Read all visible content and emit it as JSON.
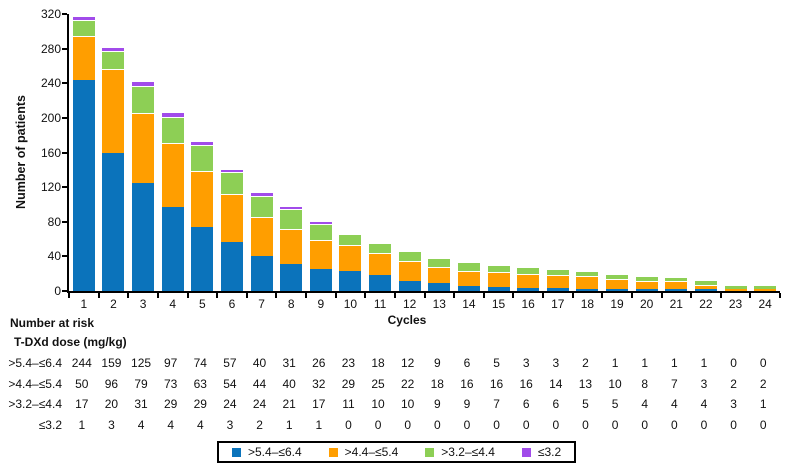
{
  "chart_data": {
    "type": "bar",
    "stacked": true,
    "title": "",
    "xlabel": "Cycles",
    "ylabel": "Number of patients",
    "ylim": [
      0,
      320
    ],
    "yticks": [
      0,
      40,
      80,
      120,
      160,
      200,
      240,
      280,
      320
    ],
    "grid": false,
    "legend_position": "bottom",
    "categories": [
      "1",
      "2",
      "3",
      "4",
      "5",
      "6",
      "7",
      "8",
      "9",
      "10",
      "11",
      "12",
      "13",
      "14",
      "15",
      "16",
      "17",
      "18",
      "19",
      "20",
      "21",
      "22",
      "23",
      "24"
    ],
    "series": [
      {
        "name": ">5.4–≤6.4",
        "color": "#0B73BB",
        "values": [
          244,
          159,
          125,
          97,
          74,
          57,
          40,
          31,
          26,
          23,
          18,
          12,
          9,
          6,
          5,
          3,
          3,
          2,
          1,
          1,
          1,
          1,
          0,
          0
        ]
      },
      {
        "name": ">4.4–≤5.4",
        "color": "#FF9E00",
        "values": [
          50,
          96,
          79,
          73,
          63,
          54,
          44,
          40,
          32,
          29,
          25,
          22,
          18,
          16,
          16,
          16,
          14,
          13,
          10,
          8,
          7,
          3,
          2,
          2
        ]
      },
      {
        "name": ">3.2–≤4.4",
        "color": "#8DCF55",
        "values": [
          17,
          20,
          31,
          29,
          29,
          24,
          24,
          21,
          17,
          11,
          10,
          10,
          9,
          9,
          7,
          6,
          6,
          5,
          5,
          4,
          4,
          4,
          3,
          1
        ]
      },
      {
        "name": "≤3.2",
        "color": "#A14BEA",
        "values": [
          1,
          3,
          4,
          4,
          4,
          3,
          2,
          1,
          1,
          0,
          0,
          0,
          0,
          0,
          0,
          0,
          0,
          0,
          0,
          0,
          0,
          0,
          0,
          0
        ]
      }
    ]
  },
  "risk_table": {
    "header": "Number at risk",
    "subheader": "T-DXd dose (mg/kg)",
    "rows": [
      {
        "label": ">5.4–≤6.4",
        "values": [
          244,
          159,
          125,
          97,
          74,
          57,
          40,
          31,
          26,
          23,
          18,
          12,
          9,
          6,
          5,
          3,
          3,
          2,
          1,
          1,
          1,
          1,
          0,
          0
        ]
      },
      {
        "label": ">4.4–≤5.4",
        "values": [
          50,
          96,
          79,
          73,
          63,
          54,
          44,
          40,
          32,
          29,
          25,
          22,
          18,
          16,
          16,
          16,
          14,
          13,
          10,
          8,
          7,
          3,
          2,
          2
        ]
      },
      {
        "label": ">3.2–≤4.4",
        "values": [
          17,
          20,
          31,
          29,
          29,
          24,
          24,
          21,
          17,
          11,
          10,
          10,
          9,
          9,
          7,
          6,
          6,
          5,
          5,
          4,
          4,
          4,
          3,
          1
        ]
      },
      {
        "label": "≤3.2",
        "values": [
          1,
          3,
          4,
          4,
          4,
          3,
          2,
          1,
          1,
          0,
          0,
          0,
          0,
          0,
          0,
          0,
          0,
          0,
          0,
          0,
          0,
          0,
          0,
          0
        ]
      }
    ]
  },
  "legend": {
    "items": [
      {
        "label": ">5.4–≤6.4",
        "color": "#0B73BB"
      },
      {
        "label": ">4.4–≤5.4",
        "color": "#FF9E00"
      },
      {
        "label": ">3.2–≤4.4",
        "color": "#8DCF55"
      },
      {
        "label": "≤3.2",
        "color": "#A14BEA"
      }
    ]
  }
}
